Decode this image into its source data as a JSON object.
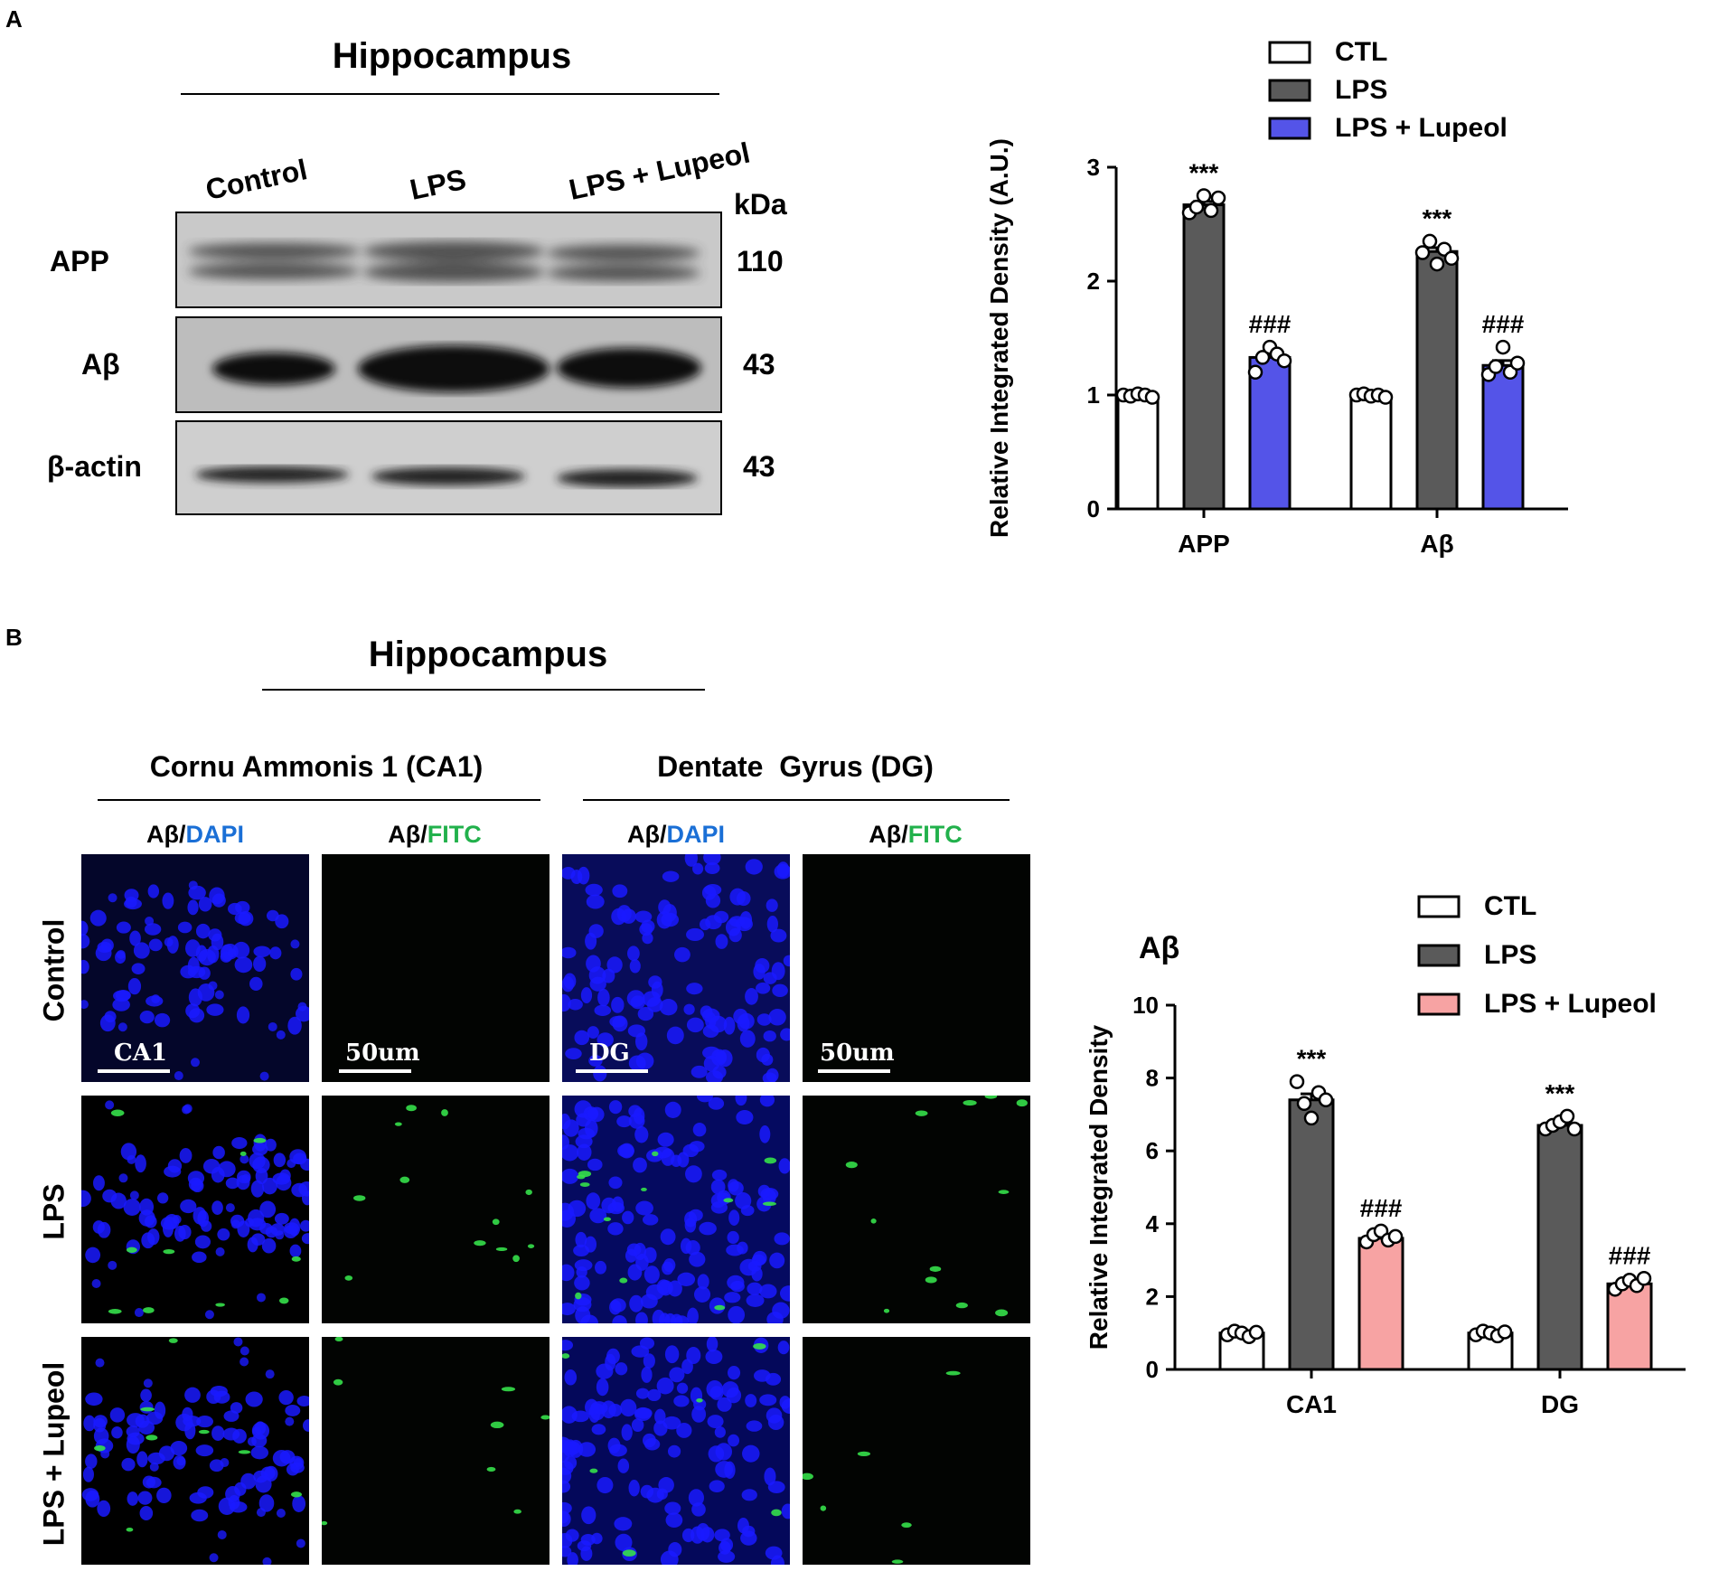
{
  "panelA": {
    "letter": "A",
    "title": "Hippocampus",
    "lanes": [
      "Control",
      "LPS",
      "LPS + Lupeol"
    ],
    "kda_header": "kDa",
    "rows": [
      {
        "label": "APP",
        "kda": "110"
      },
      {
        "label": "Aβ",
        "kda": "43"
      },
      {
        "label": "β-actin",
        "kda": "43"
      }
    ]
  },
  "panelB": {
    "letter": "B",
    "title": "Hippocampus",
    "regions": [
      "Cornu Ammonis 1 (CA1)",
      "Dentate  Gyrus (DG)"
    ],
    "stain_prefix": "Aβ/",
    "stains": [
      {
        "marker": "DAPI",
        "color": "#1a6fd6"
      },
      {
        "marker": "FITC",
        "color": "#22b14c"
      },
      {
        "marker": "DAPI",
        "color": "#1a6fd6"
      },
      {
        "marker": "FITC",
        "color": "#22b14c"
      }
    ],
    "row_labels": [
      "Control",
      "LPS",
      "LPS + Lupeol"
    ],
    "scale_labels": [
      "CA1",
      "50um",
      "DG",
      "50um"
    ]
  },
  "chart_data": [
    {
      "type": "bar",
      "title": "",
      "ylabel": "Relative Integrated Density (A.U.)",
      "xlabel": "",
      "categories": [
        "APP",
        "Aβ"
      ],
      "ylim": [
        0,
        3
      ],
      "yticks": [
        "0",
        "1",
        "2",
        "3"
      ],
      "legend_position": "top-right",
      "series": [
        {
          "name": "CTL",
          "color": "#ffffff",
          "values": [
            1.0,
            1.0
          ],
          "points": [
            [
              1.0,
              0.99,
              1.01,
              1.0,
              0.98
            ],
            [
              1.0,
              1.01,
              0.99,
              1.0,
              0.98
            ]
          ]
        },
        {
          "name": "LPS",
          "color": "#5a5a5a",
          "values": [
            2.67,
            2.26
          ],
          "points": [
            [
              2.6,
              2.65,
              2.75,
              2.62,
              2.73
            ],
            [
              2.25,
              2.35,
              2.15,
              2.28,
              2.2
            ]
          ]
        },
        {
          "name": "LPS + Lupeol",
          "color": "#5454e8",
          "values": [
            1.33,
            1.26
          ],
          "points": [
            [
              1.2,
              1.33,
              1.42,
              1.36,
              1.3
            ],
            [
              1.18,
              1.25,
              1.42,
              1.2,
              1.28
            ]
          ]
        }
      ],
      "annotations": [
        {
          "category": "APP",
          "series": "LPS",
          "text": "***"
        },
        {
          "category": "APP",
          "series": "LPS + Lupeol",
          "text": "###"
        },
        {
          "category": "Aβ",
          "series": "LPS",
          "text": "***"
        },
        {
          "category": "Aβ",
          "series": "LPS + Lupeol",
          "text": "###"
        }
      ]
    },
    {
      "type": "bar",
      "title": "Aβ",
      "ylabel": "Relative Integrated Density",
      "xlabel": "",
      "categories": [
        "CA1",
        "DG"
      ],
      "ylim": [
        0,
        10
      ],
      "yticks": [
        "0",
        "2",
        "4",
        "6",
        "8",
        "10"
      ],
      "legend_position": "top-right",
      "series": [
        {
          "name": "CTL",
          "color": "#ffffff",
          "values": [
            1.0,
            1.0
          ],
          "points": [
            [
              0.95,
              1.05,
              1.0,
              0.9,
              1.02
            ],
            [
              0.95,
              1.05,
              1.0,
              0.92,
              1.03
            ]
          ]
        },
        {
          "name": "LPS",
          "color": "#5a5a5a",
          "values": [
            7.4,
            6.7
          ],
          "points": [
            [
              7.9,
              7.3,
              6.9,
              7.6,
              7.4
            ],
            [
              6.6,
              6.7,
              6.8,
              6.95,
              6.6
            ]
          ]
        },
        {
          "name": "LPS + Lupeol",
          "color": "#f7a3a3",
          "values": [
            3.6,
            2.35
          ],
          "points": [
            [
              3.5,
              3.7,
              3.8,
              3.55,
              3.65
            ],
            [
              2.2,
              2.35,
              2.45,
              2.3,
              2.5
            ]
          ]
        }
      ],
      "annotations": [
        {
          "category": "CA1",
          "series": "LPS",
          "text": "***"
        },
        {
          "category": "CA1",
          "series": "LPS + Lupeol",
          "text": "###"
        },
        {
          "category": "DG",
          "series": "LPS",
          "text": "***"
        },
        {
          "category": "DG",
          "series": "LPS + Lupeol",
          "text": "###"
        }
      ]
    }
  ]
}
